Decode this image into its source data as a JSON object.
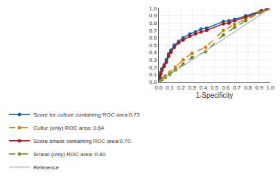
{
  "chart_data": {
    "type": "line",
    "xlabel": "1-Specificity",
    "xlim": [
      0.0,
      1.0
    ],
    "ylim": [
      0.0,
      1.0
    ],
    "xticks": [
      {
        "value": 0.0,
        "label": "0.0"
      },
      0.1,
      0.2,
      0.3,
      0.4,
      0.5,
      0.6,
      0.7,
      0.8,
      0.9,
      {
        "value": 1.0,
        "label": "1.0"
      }
    ],
    "yticks": [
      {
        "value": 0.0,
        "label": "0.0"
      },
      0.1,
      0.2,
      0.3,
      0.4,
      0.5,
      0.6,
      0.7,
      0.8,
      0.9,
      {
        "value": 1.0,
        "label": "1.0"
      }
    ],
    "grid": true,
    "legend": "below",
    "series": [
      {
        "name": "Score for culture containing ROC area:0.73",
        "color": "#1f5fa6",
        "marker": "circle",
        "line_style": "solid",
        "x": [
          0.0,
          0.01,
          0.02,
          0.03,
          0.05,
          0.07,
          0.09,
          0.11,
          0.14,
          0.18,
          0.22,
          0.28,
          0.33,
          0.38,
          0.43,
          0.58,
          0.63,
          0.68,
          0.78,
          0.92,
          0.97,
          1.0
        ],
        "values": [
          0.0,
          0.08,
          0.13,
          0.18,
          0.23,
          0.3,
          0.38,
          0.43,
          0.5,
          0.55,
          0.6,
          0.65,
          0.68,
          0.72,
          0.73,
          0.82,
          0.83,
          0.85,
          0.9,
          0.97,
          0.99,
          1.0
        ]
      },
      {
        "name": "Cultur (only) ROC area: 0.64",
        "color": "#d4820a",
        "marker": "circle",
        "line_style": "dashed",
        "x": [
          0.0,
          0.01,
          0.03,
          0.06,
          0.1,
          0.15,
          0.22,
          0.3,
          0.42,
          0.58,
          0.68,
          0.78,
          0.9,
          1.0
        ],
        "values": [
          0.0,
          0.02,
          0.05,
          0.08,
          0.13,
          0.2,
          0.3,
          0.39,
          0.47,
          0.7,
          0.78,
          0.86,
          0.95,
          1.0
        ]
      },
      {
        "name": "Score smear containing ROC area:0.70",
        "color": "#9e2020",
        "marker": "circle",
        "line_style": "solid",
        "x": [
          0.0,
          0.01,
          0.02,
          0.03,
          0.05,
          0.07,
          0.09,
          0.11,
          0.14,
          0.18,
          0.22,
          0.28,
          0.33,
          0.38,
          0.43,
          0.58,
          0.63,
          0.68,
          0.78,
          0.92,
          0.97,
          1.0
        ],
        "values": [
          0.0,
          0.06,
          0.11,
          0.16,
          0.21,
          0.27,
          0.35,
          0.4,
          0.47,
          0.53,
          0.57,
          0.62,
          0.65,
          0.68,
          0.7,
          0.79,
          0.8,
          0.83,
          0.88,
          0.96,
          0.99,
          1.0
        ]
      },
      {
        "name": "Smear (only) ROC area: 0.60",
        "color": "#6b8c2a",
        "marker": "circle",
        "line_style": "dashed",
        "x": [
          0.0,
          0.01,
          0.03,
          0.06,
          0.1,
          0.15,
          0.22,
          0.3,
          0.42,
          0.58,
          0.68,
          0.78,
          0.9,
          1.0
        ],
        "values": [
          0.0,
          0.01,
          0.03,
          0.06,
          0.1,
          0.16,
          0.24,
          0.33,
          0.41,
          0.64,
          0.74,
          0.83,
          0.94,
          1.0
        ]
      },
      {
        "name": "Reference",
        "color": "#aaaaaa",
        "line_style": "solid",
        "x": [
          0.0,
          1.0
        ],
        "values": [
          0.0,
          1.0
        ]
      }
    ]
  }
}
